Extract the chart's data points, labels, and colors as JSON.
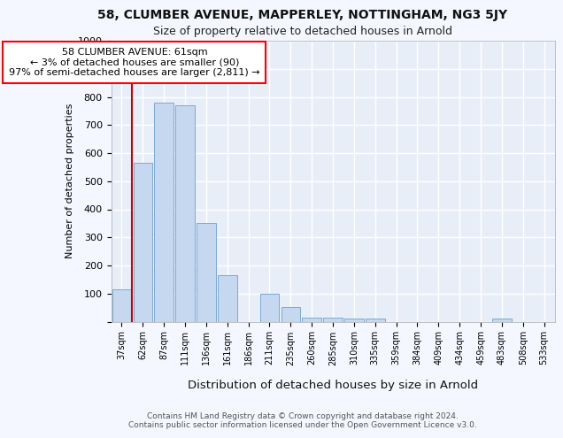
{
  "title1": "58, CLUMBER AVENUE, MAPPERLEY, NOTTINGHAM, NG3 5JY",
  "title2": "Size of property relative to detached houses in Arnold",
  "xlabel": "Distribution of detached houses by size in Arnold",
  "ylabel": "Number of detached properties",
  "categories": [
    "37sqm",
    "62sqm",
    "87sqm",
    "111sqm",
    "136sqm",
    "161sqm",
    "186sqm",
    "211sqm",
    "235sqm",
    "260sqm",
    "285sqm",
    "310sqm",
    "335sqm",
    "359sqm",
    "384sqm",
    "409sqm",
    "434sqm",
    "459sqm",
    "483sqm",
    "508sqm",
    "533sqm"
  ],
  "values": [
    115,
    565,
    780,
    770,
    350,
    165,
    0,
    100,
    52,
    15,
    15,
    10,
    10,
    0,
    0,
    0,
    0,
    0,
    10,
    0,
    0
  ],
  "bar_color": "#c5d8f0",
  "bar_edge_color": "#7aaad4",
  "annotation_text_line1": "58 CLUMBER AVENUE: 61sqm",
  "annotation_text_line2": "← 3% of detached houses are smaller (90)",
  "annotation_text_line3": "97% of semi-detached houses are larger (2,811) →",
  "vline_color": "#cc0000",
  "vline_x": 0.5,
  "footer_line1": "Contains HM Land Registry data © Crown copyright and database right 2024.",
  "footer_line2": "Contains public sector information licensed under the Open Government Licence v3.0.",
  "bg_color": "#f4f7ff",
  "plot_bg_color": "#e8eef8",
  "grid_color": "#ffffff",
  "ylim": [
    0,
    1000
  ],
  "yticks": [
    0,
    100,
    200,
    300,
    400,
    500,
    600,
    700,
    800,
    900,
    1000
  ]
}
